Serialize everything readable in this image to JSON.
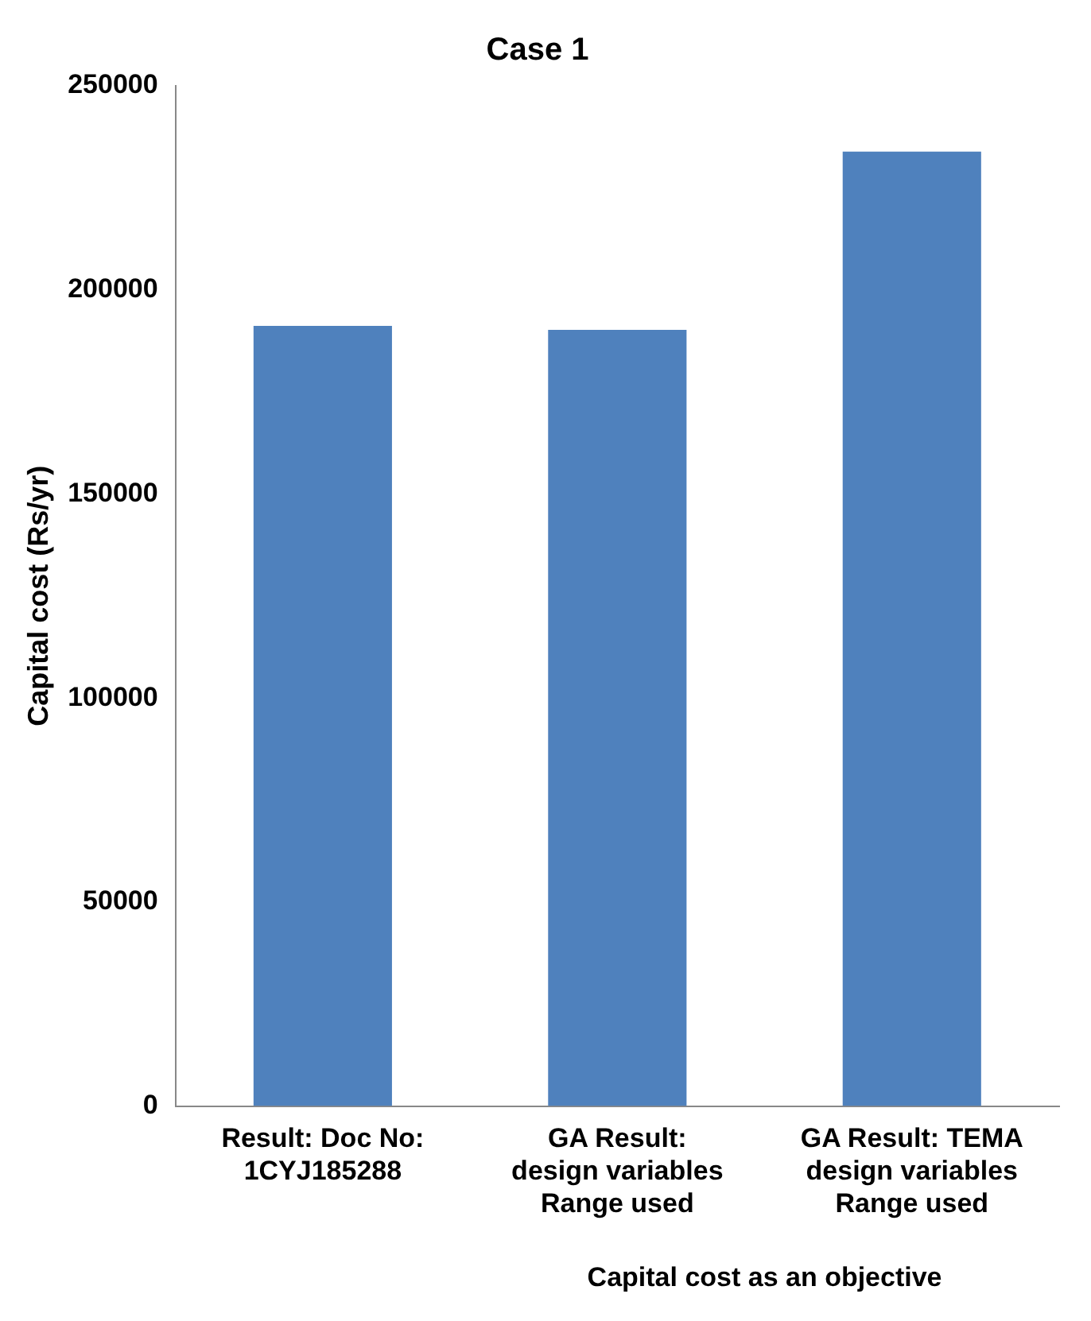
{
  "chart_data": {
    "type": "bar",
    "title": "Case 1",
    "ylabel": "Capital cost (Rs/yr)",
    "categories": [
      "Result: Doc No: 1CYJ185288",
      "GA Result: design variables Range used",
      "GA Result: TEMA design variables Range used"
    ],
    "values": [
      191200,
      190200,
      233900
    ],
    "color": "#4f81bd",
    "ylim": [
      0,
      250000
    ],
    "yticks": [
      0,
      50000,
      100000,
      150000,
      200000,
      250000
    ],
    "grid": false,
    "legend": false,
    "annotations": [
      "Capital cost as an objective"
    ]
  }
}
